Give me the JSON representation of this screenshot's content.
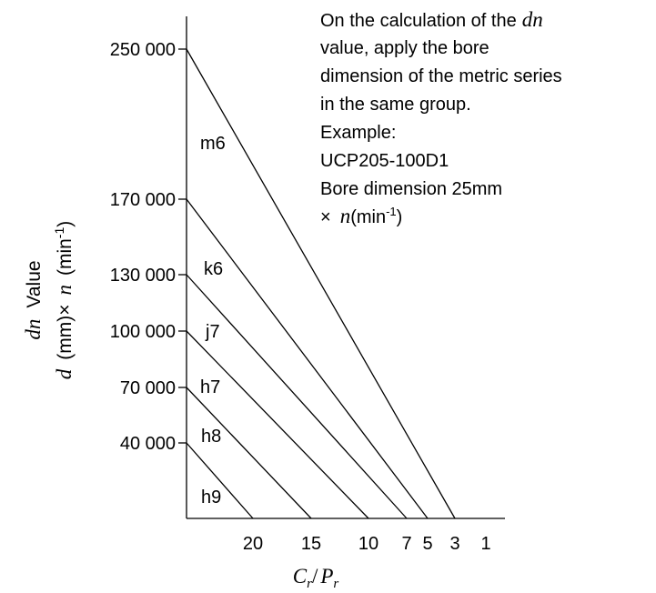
{
  "chart_data": {
    "type": "line",
    "title": "",
    "ylabel": {
      "line1_var": "dn",
      "line1_text": "Value",
      "line2_var1": "d",
      "line2_unit1": "(mm)",
      "line2_times": "×",
      "line2_var2": "n",
      "line2_unit2": "(min",
      "line2_sup": "-1",
      "line2_close": ")"
    },
    "xlabel": {
      "var1": "C",
      "sub1": "r",
      "sep": "/",
      "var2": "P",
      "sub2": "r"
    },
    "x_ticks": [
      "20",
      "15",
      "10",
      "7",
      "5",
      "3",
      "1"
    ],
    "y_ticks": [
      "250 000",
      "170 000",
      "130 000",
      "100 000",
      "70 000",
      "40 000"
    ],
    "y_tick_values": [
      250000,
      170000,
      130000,
      100000,
      70000,
      40000
    ],
    "series": [
      {
        "name": "m6",
        "x": [
          30,
          3
        ],
        "y": [
          250000,
          0
        ]
      },
      {
        "name": "k6",
        "x": [
          30,
          5
        ],
        "y": [
          170000,
          0
        ]
      },
      {
        "name": "j7",
        "x": [
          30,
          7
        ],
        "y": [
          130000,
          0
        ]
      },
      {
        "name": "h7",
        "x": [
          30,
          10
        ],
        "y": [
          100000,
          0
        ]
      },
      {
        "name": "h8",
        "x": [
          30,
          15
        ],
        "y": [
          70000,
          0
        ]
      },
      {
        "name": "h9",
        "x": [
          30,
          20
        ],
        "y": [
          40000,
          0
        ]
      }
    ],
    "annotation": {
      "line1": "On the calculation of the",
      "line1_var": "dn",
      "line2": "value, apply the bore",
      "line3": "dimension of the metric series",
      "line4": "in the same group.",
      "line5": "Example:",
      "line6": "UCP205-100D1",
      "line7": "Bore dimension 25mm",
      "line8_prefix": "×",
      "line8_var": "n",
      "line8_unit": "(min",
      "line8_sup": "-1",
      "line8_close": ")"
    },
    "grid": false,
    "legend": "none"
  }
}
